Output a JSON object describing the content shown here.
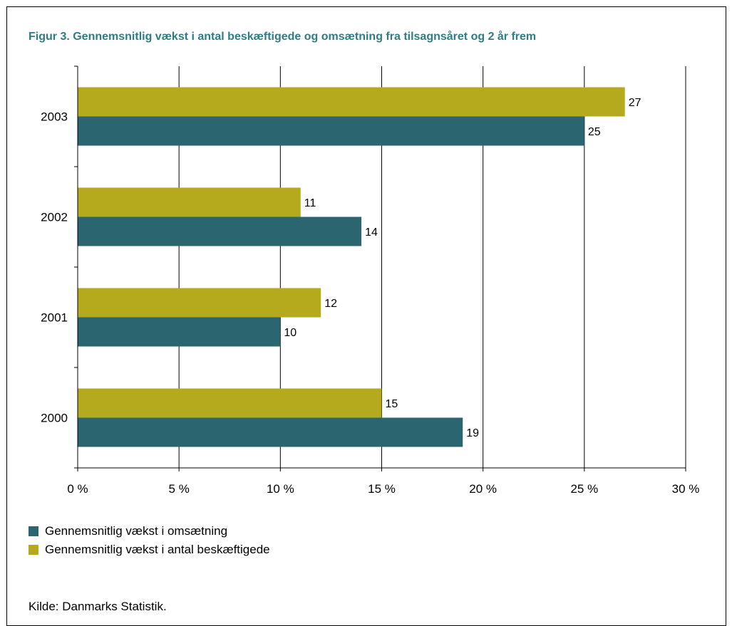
{
  "title": "Figur 3. Gennemsnitlig vækst i antal beskæftigede og omsætning fra tilsagnsåret og 2 år frem",
  "source": "Kilde: Danmarks Statistik.",
  "colors": {
    "omsaetning": "#2b6570",
    "beskaeftigede": "#b5aa1e",
    "title": "#2e7d86"
  },
  "chart_data": {
    "type": "bar",
    "orientation": "horizontal",
    "categories": [
      "2000",
      "2001",
      "2002",
      "2003"
    ],
    "series": [
      {
        "name": "Gennemsnitlig vækst i omsætning",
        "values": [
          19,
          10,
          14,
          25
        ],
        "color": "#2b6570"
      },
      {
        "name": "Gennemsnitlig vækst i antal beskæftigede",
        "values": [
          15,
          12,
          11,
          27
        ],
        "color": "#b5aa1e"
      }
    ],
    "xlim": [
      0,
      30
    ],
    "xticks": [
      0,
      5,
      10,
      15,
      20,
      25,
      30
    ],
    "xtick_labels": [
      "0 %",
      "5 %",
      "10 %",
      "15 %",
      "20 %",
      "25 %",
      "30 %"
    ],
    "grid": "vertical",
    "legend_position": "bottom-left",
    "title": "Figur 3. Gennemsnitlig vækst i antal beskæftigede og omsætning fra tilsagnsåret og 2 år frem",
    "xlabel": "",
    "ylabel": ""
  }
}
